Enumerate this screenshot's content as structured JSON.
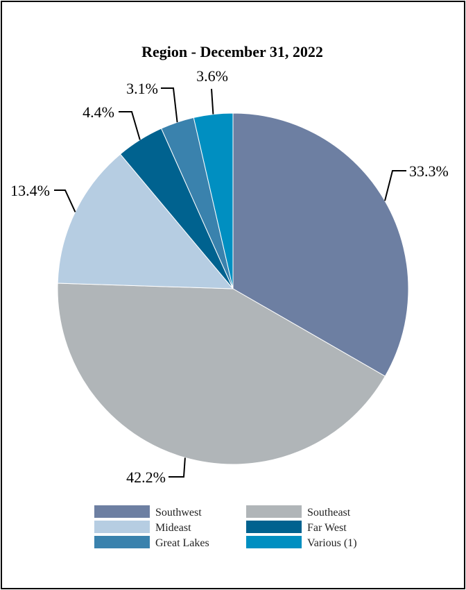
{
  "chart_data": {
    "type": "pie",
    "title": "Region - December 31, 2022",
    "slices": [
      {
        "name": "Southwest",
        "value": 33.3,
        "label": "33.3%",
        "color": "#6d7fa2"
      },
      {
        "name": "Southeast",
        "value": 42.2,
        "label": "42.2%",
        "color": "#b0b5b8"
      },
      {
        "name": "Mideast",
        "value": 13.4,
        "label": "13.4%",
        "color": "#b6cde2"
      },
      {
        "name": "Far West",
        "value": 4.4,
        "label": "4.4%",
        "color": "#00628f"
      },
      {
        "name": "Great Lakes",
        "value": 3.1,
        "label": "3.1%",
        "color": "#3a82ad"
      },
      {
        "name": "Various (1)",
        "value": 3.6,
        "label": "3.6%",
        "color": "#008fc1"
      }
    ],
    "legend_placement": "bottom"
  }
}
